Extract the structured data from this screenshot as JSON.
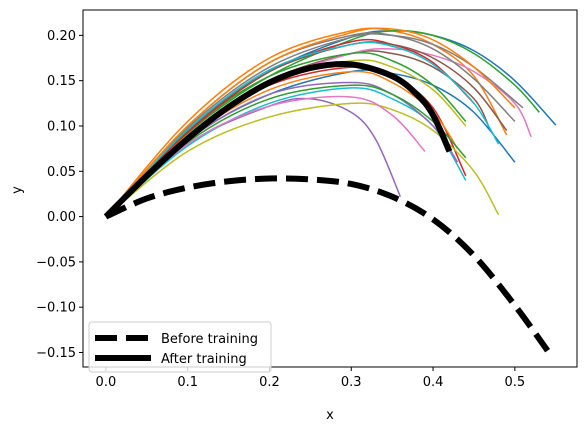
{
  "chart_data": {
    "type": "line",
    "title": "",
    "xlabel": "x",
    "ylabel": "y",
    "xlim": [
      -0.028,
      0.576
    ],
    "ylim": [
      -0.166,
      0.228
    ],
    "x_ticks": [
      0.0,
      0.1,
      0.2,
      0.3,
      0.4,
      0.5
    ],
    "x_tick_labels": [
      "0.0",
      "0.1",
      "0.2",
      "0.3",
      "0.4",
      "0.5"
    ],
    "y_ticks": [
      -0.15,
      -0.1,
      -0.05,
      0.0,
      0.05,
      0.1,
      0.15,
      0.2
    ],
    "y_tick_labels": [
      "−0.15",
      "−0.10",
      "−0.05",
      "0.00",
      "0.05",
      "0.10",
      "0.15",
      "0.20"
    ],
    "grid": false,
    "legend_position": "lower-left",
    "colors": [
      "#1f77b4",
      "#ff7f0e",
      "#2ca02c",
      "#d62728",
      "#9467bd",
      "#8c564b",
      "#e377c2",
      "#7f7f7f",
      "#bcbd22",
      "#17becf"
    ],
    "series": [
      {
        "name": "Before training",
        "style": "dashed",
        "color": "#000000",
        "x": [
          0.0,
          0.05,
          0.1,
          0.15,
          0.2,
          0.25,
          0.3,
          0.35,
          0.4,
          0.45,
          0.5,
          0.54
        ],
        "y": [
          0.0,
          0.02,
          0.032,
          0.039,
          0.042,
          0.041,
          0.036,
          0.022,
          -0.003,
          -0.043,
          -0.098,
          -0.148
        ]
      },
      {
        "name": "After training",
        "style": "solid",
        "color": "#000000",
        "x": [
          0.0,
          0.05,
          0.1,
          0.15,
          0.2,
          0.25,
          0.3,
          0.35,
          0.38,
          0.4,
          0.42
        ],
        "y": [
          0.0,
          0.045,
          0.086,
          0.121,
          0.148,
          0.164,
          0.168,
          0.155,
          0.135,
          0.112,
          0.072
        ]
      },
      {
        "name": "",
        "style": "thin",
        "color": "#1f77b4",
        "x": [
          0.0,
          0.1,
          0.2,
          0.3,
          0.35,
          0.4,
          0.45,
          0.5,
          0.55
        ],
        "y": [
          0.0,
          0.095,
          0.16,
          0.198,
          0.205,
          0.2,
          0.183,
          0.15,
          0.101
        ]
      },
      {
        "name": "",
        "style": "thin",
        "color": "#ff7f0e",
        "x": [
          0.0,
          0.1,
          0.2,
          0.3,
          0.35,
          0.4,
          0.45,
          0.49
        ],
        "y": [
          0.0,
          0.105,
          0.175,
          0.205,
          0.205,
          0.19,
          0.155,
          0.09
        ]
      },
      {
        "name": "",
        "style": "thin",
        "color": "#2ca02c",
        "x": [
          0.0,
          0.1,
          0.2,
          0.3,
          0.35,
          0.4,
          0.45,
          0.5,
          0.53
        ],
        "y": [
          0.0,
          0.092,
          0.155,
          0.195,
          0.205,
          0.2,
          0.18,
          0.145,
          0.115
        ]
      },
      {
        "name": "",
        "style": "thin",
        "color": "#d62728",
        "x": [
          0.0,
          0.1,
          0.2,
          0.3,
          0.35,
          0.4,
          0.44
        ],
        "y": [
          0.0,
          0.09,
          0.145,
          0.165,
          0.155,
          0.12,
          0.045
        ]
      },
      {
        "name": "",
        "style": "thin",
        "color": "#9467bd",
        "x": [
          0.0,
          0.1,
          0.2,
          0.25,
          0.3,
          0.33,
          0.36
        ],
        "y": [
          0.0,
          0.08,
          0.122,
          0.13,
          0.115,
          0.085,
          0.022
        ]
      },
      {
        "name": "",
        "style": "thin",
        "color": "#8c564b",
        "x": [
          0.0,
          0.1,
          0.2,
          0.3,
          0.35,
          0.4,
          0.45,
          0.47
        ],
        "y": [
          0.0,
          0.09,
          0.15,
          0.18,
          0.18,
          0.165,
          0.13,
          0.095
        ]
      },
      {
        "name": "",
        "style": "thin",
        "color": "#e377c2",
        "x": [
          0.0,
          0.1,
          0.2,
          0.3,
          0.35,
          0.4,
          0.45,
          0.5,
          0.52
        ],
        "y": [
          0.0,
          0.088,
          0.148,
          0.18,
          0.185,
          0.178,
          0.16,
          0.125,
          0.088
        ]
      },
      {
        "name": "",
        "style": "thin",
        "color": "#7f7f7f",
        "x": [
          0.0,
          0.1,
          0.2,
          0.3,
          0.35,
          0.4,
          0.45,
          0.5
        ],
        "y": [
          0.0,
          0.1,
          0.17,
          0.2,
          0.2,
          0.185,
          0.152,
          0.105
        ]
      },
      {
        "name": "",
        "style": "thin",
        "color": "#bcbd22",
        "x": [
          0.0,
          0.1,
          0.2,
          0.3,
          0.35,
          0.4,
          0.45,
          0.48
        ],
        "y": [
          0.0,
          0.072,
          0.11,
          0.125,
          0.118,
          0.095,
          0.05,
          0.002
        ]
      },
      {
        "name": "",
        "style": "thin",
        "color": "#17becf",
        "x": [
          0.0,
          0.1,
          0.2,
          0.3,
          0.35,
          0.4,
          0.44
        ],
        "y": [
          0.0,
          0.078,
          0.125,
          0.142,
          0.13,
          0.1,
          0.04
        ]
      },
      {
        "name": "",
        "style": "thin",
        "color": "#1f77b4",
        "x": [
          0.0,
          0.1,
          0.2,
          0.3,
          0.35,
          0.4,
          0.45,
          0.5
        ],
        "y": [
          0.0,
          0.085,
          0.135,
          0.16,
          0.158,
          0.145,
          0.115,
          0.06
        ]
      },
      {
        "name": "",
        "style": "thin",
        "color": "#ff7f0e",
        "x": [
          0.0,
          0.1,
          0.2,
          0.3,
          0.35,
          0.4,
          0.43
        ],
        "y": [
          0.0,
          0.086,
          0.14,
          0.16,
          0.148,
          0.115,
          0.075
        ]
      },
      {
        "name": "",
        "style": "thin",
        "color": "#2ca02c",
        "x": [
          0.0,
          0.1,
          0.2,
          0.3,
          0.35,
          0.4,
          0.44
        ],
        "y": [
          0.0,
          0.094,
          0.155,
          0.18,
          0.172,
          0.145,
          0.105
        ]
      },
      {
        "name": "",
        "style": "thin",
        "color": "#d62728",
        "x": [
          0.0,
          0.1,
          0.2,
          0.3,
          0.35,
          0.4,
          0.45
        ],
        "y": [
          0.0,
          0.093,
          0.16,
          0.193,
          0.19,
          0.17,
          0.125
        ]
      },
      {
        "name": "",
        "style": "thin",
        "color": "#9467bd",
        "x": [
          0.0,
          0.1,
          0.2,
          0.3,
          0.35,
          0.4,
          0.43
        ],
        "y": [
          0.0,
          0.084,
          0.135,
          0.148,
          0.135,
          0.1,
          0.06
        ]
      },
      {
        "name": "",
        "style": "thin",
        "color": "#8c564b",
        "x": [
          0.0,
          0.1,
          0.2,
          0.3,
          0.35,
          0.4,
          0.45,
          0.49
        ],
        "y": [
          0.0,
          0.095,
          0.16,
          0.19,
          0.19,
          0.175,
          0.142,
          0.095
        ]
      },
      {
        "name": "",
        "style": "thin",
        "color": "#e377c2",
        "x": [
          0.0,
          0.1,
          0.2,
          0.3,
          0.35,
          0.39
        ],
        "y": [
          0.0,
          0.08,
          0.122,
          0.132,
          0.112,
          0.072
        ]
      },
      {
        "name": "",
        "style": "thin",
        "color": "#7f7f7f",
        "x": [
          0.0,
          0.1,
          0.2,
          0.3,
          0.35,
          0.4,
          0.45,
          0.51
        ],
        "y": [
          0.0,
          0.098,
          0.165,
          0.198,
          0.2,
          0.19,
          0.165,
          0.12
        ]
      },
      {
        "name": "",
        "style": "thin",
        "color": "#bcbd22",
        "x": [
          0.0,
          0.1,
          0.2,
          0.3,
          0.35,
          0.4,
          0.44
        ],
        "y": [
          0.0,
          0.09,
          0.148,
          0.172,
          0.165,
          0.14,
          0.1
        ]
      },
      {
        "name": "",
        "style": "thin",
        "color": "#17becf",
        "x": [
          0.0,
          0.1,
          0.2,
          0.3,
          0.35,
          0.4,
          0.45,
          0.48
        ],
        "y": [
          0.0,
          0.096,
          0.162,
          0.19,
          0.188,
          0.168,
          0.125,
          0.08
        ]
      },
      {
        "name": "",
        "style": "thin",
        "color": "#2ca02c",
        "x": [
          0.0,
          0.1,
          0.2,
          0.3,
          0.35,
          0.4,
          0.44
        ],
        "y": [
          0.0,
          0.082,
          0.13,
          0.145,
          0.135,
          0.105,
          0.065
        ]
      },
      {
        "name": "",
        "style": "thin",
        "color": "#ff7f0e",
        "x": [
          0.0,
          0.1,
          0.2,
          0.3,
          0.35,
          0.4,
          0.45,
          0.5
        ],
        "y": [
          0.0,
          0.1,
          0.17,
          0.203,
          0.207,
          0.195,
          0.165,
          0.12
        ]
      }
    ]
  }
}
